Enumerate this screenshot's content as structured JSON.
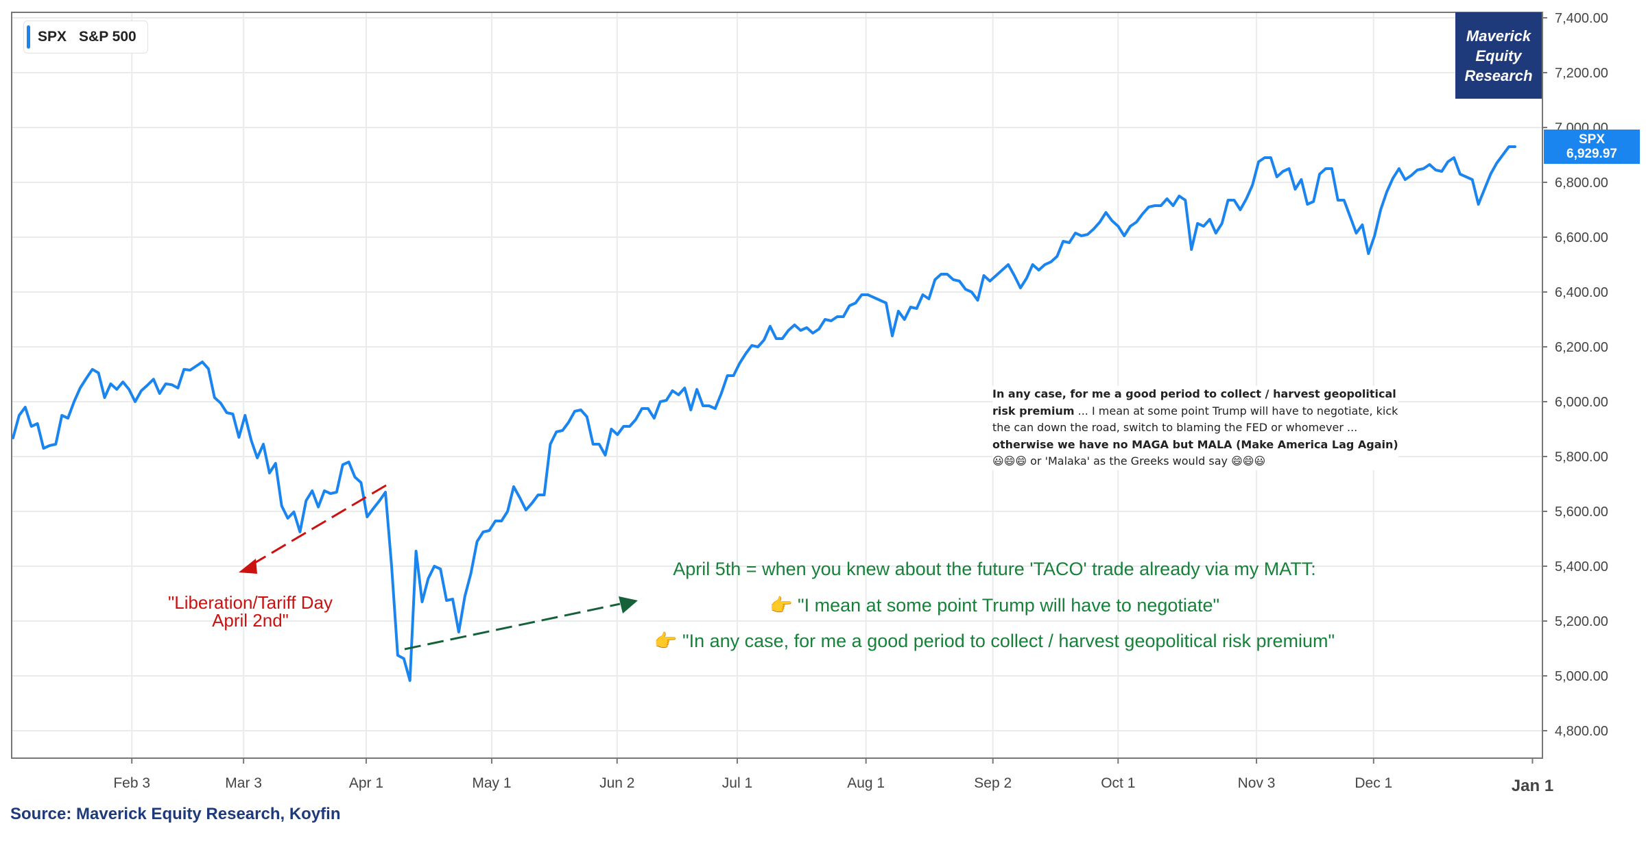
{
  "legend": {
    "ticker": "SPX",
    "name": "S&P 500"
  },
  "brand": {
    "line1": "Maverick",
    "line2": "Equity",
    "line3": "Research"
  },
  "price_tag": {
    "ticker": "SPX",
    "value": "6,929.97"
  },
  "colors": {
    "series": "#1a84ef",
    "brand": "#1f3a7a",
    "red_annotation": "#cc1111",
    "green_annotation": "#17813a",
    "grid": "#ebebeb"
  },
  "annotations": {
    "liberation_line1": "\"Liberation/Tariff Day",
    "liberation_line2": "April 2nd\"",
    "green_line1": "April 5th = when you knew about the future 'TACO' trade already via my MATT:",
    "green_line2": "👉 \"I mean at some point Trump will have to negotiate\"",
    "green_line3": "👉 \"In any case, for me a good period to collect / harvest geopolitical risk premium\""
  },
  "note": {
    "bold1": "In any case, for me a good period to collect / harvest geopolitical risk premium",
    "text1": " ... I mean at some point Trump will have to negotiate, kick the can down the road, switch to blaming the FED or whomever ... ",
    "bold2": "otherwise we have no MAGA but MALA (Make America Lag Again)",
    "text2": " 😃😄😄 or 'Malaka' as the Greeks would say 😄😄😃"
  },
  "source": "Source: Maverick Equity Research, Koyfin",
  "chart_data": {
    "type": "line",
    "title": "",
    "xlabel": "",
    "ylabel": "",
    "ylim": [
      4700,
      7420
    ],
    "grid": true,
    "legend_position": "top-left",
    "y_axis_position": "right",
    "x_ticks": [
      "Feb 3",
      "Mar 3",
      "Apr 1",
      "May 1",
      "Jun 2",
      "Jul 1",
      "Aug 1",
      "Sep 2",
      "Oct 1",
      "Nov 3",
      "Dec 1",
      "Jan 1"
    ],
    "y_ticks": [
      "4,800.00",
      "5,000.00",
      "5,200.00",
      "5,400.00",
      "5,600.00",
      "5,800.00",
      "6,000.00",
      "6,200.00",
      "6,400.00",
      "6,600.00",
      "6,800.00",
      "7,000.00",
      "7,200.00",
      "7,400.00"
    ],
    "series": [
      {
        "name": "SPX",
        "values": [
          5868,
          5950,
          5980,
          5910,
          5920,
          5830,
          5840,
          5845,
          5950,
          5940,
          6000,
          6050,
          6085,
          6118,
          6105,
          6015,
          6065,
          6045,
          6072,
          6045,
          6000,
          6040,
          6060,
          6082,
          6030,
          6065,
          6062,
          6050,
          6118,
          6115,
          6130,
          6145,
          6120,
          6015,
          5995,
          5960,
          5955,
          5870,
          5950,
          5860,
          5795,
          5845,
          5740,
          5775,
          5620,
          5575,
          5598,
          5525,
          5639,
          5675,
          5616,
          5675,
          5665,
          5670,
          5770,
          5780,
          5725,
          5705,
          5580,
          5610,
          5638,
          5670,
          5400,
          5075,
          5063,
          4983,
          5455,
          5270,
          5355,
          5400,
          5390,
          5275,
          5280,
          5160,
          5290,
          5375,
          5490,
          5525,
          5530,
          5565,
          5565,
          5600,
          5690,
          5650,
          5605,
          5630,
          5660,
          5660,
          5845,
          5890,
          5895,
          5925,
          5965,
          5970,
          5945,
          5845,
          5845,
          5805,
          5900,
          5880,
          5910,
          5910,
          5935,
          5975,
          5975,
          5940,
          6000,
          6005,
          6040,
          6025,
          6050,
          5970,
          6045,
          5985,
          5985,
          5975,
          6030,
          6095,
          6095,
          6140,
          6175,
          6205,
          6200,
          6225,
          6275,
          6230,
          6230,
          6260,
          6280,
          6260,
          6270,
          6250,
          6265,
          6300,
          6295,
          6310,
          6310,
          6350,
          6360,
          6390,
          6390,
          6380,
          6370,
          6360,
          6240,
          6330,
          6300,
          6345,
          6340,
          6390,
          6375,
          6445,
          6465,
          6465,
          6445,
          6440,
          6410,
          6400,
          6370,
          6460,
          6440,
          6460,
          6480,
          6500,
          6460,
          6415,
          6450,
          6500,
          6480,
          6500,
          6510,
          6530,
          6585,
          6580,
          6615,
          6605,
          6610,
          6630,
          6655,
          6690,
          6660,
          6640,
          6605,
          6640,
          6655,
          6685,
          6710,
          6715,
          6715,
          6740,
          6715,
          6750,
          6735,
          6555,
          6650,
          6640,
          6665,
          6615,
          6650,
          6735,
          6735,
          6700,
          6740,
          6790,
          6875,
          6890,
          6890,
          6820,
          6840,
          6850,
          6775,
          6810,
          6720,
          6730,
          6830,
          6850,
          6850,
          6735,
          6735,
          6675,
          6615,
          6645,
          6540,
          6605,
          6700,
          6765,
          6815,
          6850,
          6810,
          6825,
          6845,
          6850,
          6865,
          6845,
          6840,
          6875,
          6890,
          6830,
          6820,
          6810,
          6720,
          6775,
          6830,
          6870,
          6900,
          6930,
          6929.97
        ]
      }
    ]
  }
}
